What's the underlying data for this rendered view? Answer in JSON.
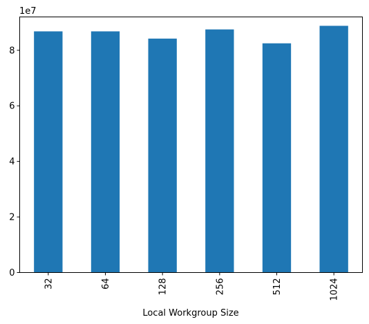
{
  "chart_data": {
    "type": "bar",
    "title": "",
    "xlabel": "Local Workgroup Size",
    "ylabel": "",
    "y_scale_note": "1e7",
    "categories": [
      "32",
      "64",
      "128",
      "256",
      "512",
      "1024"
    ],
    "values": [
      86800000,
      86800000,
      84200000,
      87500000,
      82500000,
      88800000
    ],
    "ylim": [
      0,
      92000000
    ],
    "yticks": [
      0,
      20000000,
      40000000,
      60000000,
      80000000
    ],
    "ytick_labels": [
      "0",
      "2",
      "4",
      "6",
      "8"
    ],
    "xtick_rotation": "vertical",
    "grid": false,
    "legend": "none",
    "bar_color": "#1f77b4"
  }
}
